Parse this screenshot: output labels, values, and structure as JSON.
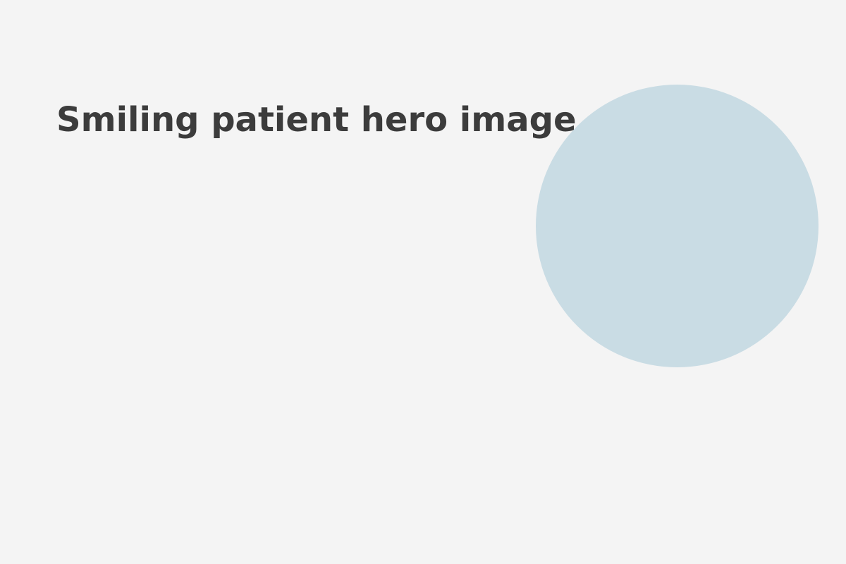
{
  "hero": {
    "caption": "Smiling patient hero image"
  },
  "colors": {
    "background": "#f4f4f4",
    "caption_text": "#3c3c3c",
    "circle_fill": "#c9dce4"
  }
}
